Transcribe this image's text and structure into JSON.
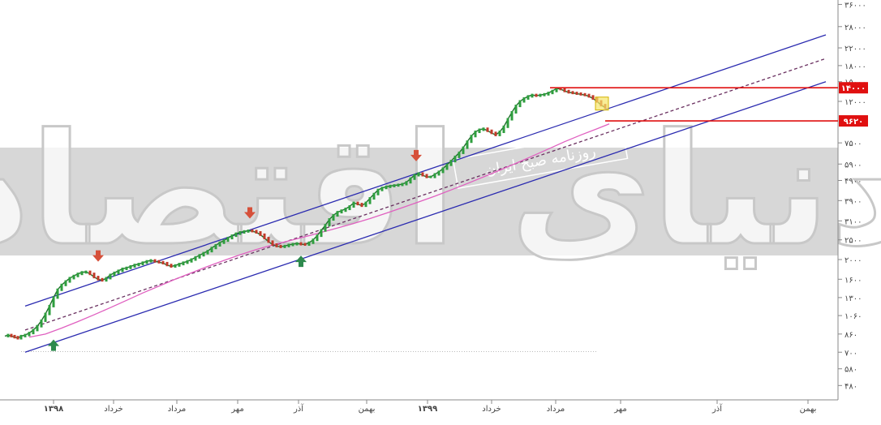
{
  "chart_data": {
    "type": "line",
    "scale": "log",
    "y_ticks": [
      {
        "label": "۴۸۰",
        "value": 480
      },
      {
        "label": "۵۸۰",
        "value": 580
      },
      {
        "label": "۷۰۰",
        "value": 700
      },
      {
        "label": "۸۶۰",
        "value": 860
      },
      {
        "label": "۱۰۶۰",
        "value": 1060
      },
      {
        "label": "۱۳۰۰",
        "value": 1300
      },
      {
        "label": "۱۶۰۰",
        "value": 1600
      },
      {
        "label": "۲۰۰۰",
        "value": 2000
      },
      {
        "label": "۲۵۰۰",
        "value": 2500
      },
      {
        "label": "۳۱۰۰",
        "value": 3100
      },
      {
        "label": "۳۹۰۰",
        "value": 3900
      },
      {
        "label": "۴۹۰۰",
        "value": 4900
      },
      {
        "label": "۵۹۰۰",
        "value": 5900
      },
      {
        "label": "۷۵۰۰",
        "value": 7500
      },
      {
        "label": "۱۲۰۰۰",
        "value": 12000
      },
      {
        "label": "۱۵۰۰۰",
        "value": 15000
      },
      {
        "label": "۱۸۰۰۰",
        "value": 18000
      },
      {
        "label": "۲۲۰۰۰",
        "value": 22000
      },
      {
        "label": "۲۸۰۰۰",
        "value": 28000
      },
      {
        "label": "۳۶۰۰۰",
        "value": 36000
      }
    ],
    "x_ticks": [
      {
        "label": "۱۳۹۸",
        "bold": true
      },
      {
        "label": "خرداد",
        "bold": false
      },
      {
        "label": "مرداد",
        "bold": false
      },
      {
        "label": "مهر",
        "bold": false
      },
      {
        "label": "آذر",
        "bold": false
      },
      {
        "label": "بهمن",
        "bold": false
      },
      {
        "label": "۱۳۹۹",
        "bold": true
      },
      {
        "label": "خرداد",
        "bold": false
      },
      {
        "label": "مرداد",
        "bold": false
      },
      {
        "label": "مهر",
        "bold": false
      },
      {
        "label": "آذر",
        "bold": false
      },
      {
        "label": "بهمن",
        "bold": false
      }
    ],
    "levels": [
      {
        "label": "۱۴۰۰۰",
        "value": 14000,
        "color": "#e01010"
      },
      {
        "label": "۹۶۲۰",
        "value": 9620,
        "color": "#e01010"
      }
    ],
    "price_series": [
      [
        0,
        840
      ],
      [
        4,
        850
      ],
      [
        8,
        840
      ],
      [
        12,
        830
      ],
      [
        16,
        820
      ],
      [
        20,
        840
      ],
      [
        25,
        850
      ],
      [
        30,
        870
      ],
      [
        35,
        900
      ],
      [
        40,
        940
      ],
      [
        45,
        1000
      ],
      [
        50,
        1080
      ],
      [
        55,
        1180
      ],
      [
        60,
        1300
      ],
      [
        65,
        1420
      ],
      [
        70,
        1500
      ],
      [
        75,
        1560
      ],
      [
        80,
        1620
      ],
      [
        85,
        1660
      ],
      [
        90,
        1700
      ],
      [
        95,
        1730
      ],
      [
        100,
        1740
      ],
      [
        105,
        1700
      ],
      [
        110,
        1640
      ],
      [
        115,
        1600
      ],
      [
        120,
        1580
      ],
      [
        125,
        1620
      ],
      [
        130,
        1680
      ],
      [
        135,
        1720
      ],
      [
        140,
        1760
      ],
      [
        145,
        1800
      ],
      [
        150,
        1820
      ],
      [
        155,
        1850
      ],
      [
        160,
        1880
      ],
      [
        165,
        1900
      ],
      [
        170,
        1930
      ],
      [
        175,
        1960
      ],
      [
        180,
        1980
      ],
      [
        185,
        1960
      ],
      [
        190,
        1940
      ],
      [
        195,
        1920
      ],
      [
        200,
        1880
      ],
      [
        205,
        1850
      ],
      [
        210,
        1870
      ],
      [
        215,
        1900
      ],
      [
        220,
        1930
      ],
      [
        225,
        1960
      ],
      [
        230,
        2000
      ],
      [
        235,
        2050
      ],
      [
        240,
        2100
      ],
      [
        245,
        2150
      ],
      [
        250,
        2200
      ],
      [
        255,
        2280
      ],
      [
        260,
        2350
      ],
      [
        265,
        2420
      ],
      [
        270,
        2480
      ],
      [
        275,
        2550
      ],
      [
        280,
        2620
      ],
      [
        285,
        2680
      ],
      [
        290,
        2720
      ],
      [
        295,
        2750
      ],
      [
        300,
        2770
      ],
      [
        305,
        2760
      ],
      [
        310,
        2720
      ],
      [
        315,
        2650
      ],
      [
        320,
        2550
      ],
      [
        325,
        2450
      ],
      [
        330,
        2370
      ],
      [
        335,
        2330
      ],
      [
        340,
        2310
      ],
      [
        345,
        2330
      ],
      [
        350,
        2360
      ],
      [
        355,
        2380
      ],
      [
        360,
        2400
      ],
      [
        365,
        2380
      ],
      [
        370,
        2370
      ],
      [
        375,
        2420
      ],
      [
        380,
        2500
      ],
      [
        385,
        2620
      ],
      [
        390,
        2780
      ],
      [
        395,
        2950
      ],
      [
        400,
        3150
      ],
      [
        405,
        3300
      ],
      [
        410,
        3420
      ],
      [
        415,
        3480
      ],
      [
        420,
        3550
      ],
      [
        425,
        3650
      ],
      [
        430,
        3800
      ],
      [
        435,
        3750
      ],
      [
        440,
        3680
      ],
      [
        445,
        3800
      ],
      [
        450,
        4000
      ],
      [
        455,
        4200
      ],
      [
        460,
        4400
      ],
      [
        465,
        4500
      ],
      [
        470,
        4560
      ],
      [
        475,
        4600
      ],
      [
        480,
        4630
      ],
      [
        485,
        4660
      ],
      [
        490,
        4700
      ],
      [
        495,
        4800
      ],
      [
        500,
        5000
      ],
      [
        505,
        5200
      ],
      [
        510,
        5300
      ],
      [
        515,
        5200
      ],
      [
        520,
        5100
      ],
      [
        525,
        5100
      ],
      [
        530,
        5250
      ],
      [
        535,
        5400
      ],
      [
        540,
        5600
      ],
      [
        545,
        5850
      ],
      [
        550,
        6100
      ],
      [
        555,
        6400
      ],
      [
        560,
        6700
      ],
      [
        565,
        7100
      ],
      [
        570,
        7600
      ],
      [
        575,
        8100
      ],
      [
        580,
        8500
      ],
      [
        585,
        8700
      ],
      [
        590,
        8800
      ],
      [
        595,
        8600
      ],
      [
        600,
        8400
      ],
      [
        605,
        8200
      ],
      [
        610,
        8500
      ],
      [
        615,
        9000
      ],
      [
        620,
        9800
      ],
      [
        625,
        10600
      ],
      [
        630,
        11400
      ],
      [
        635,
        12000
      ],
      [
        640,
        12400
      ],
      [
        645,
        12700
      ],
      [
        650,
        12900
      ],
      [
        655,
        12800
      ],
      [
        660,
        12900
      ],
      [
        665,
        13000
      ],
      [
        670,
        13200
      ],
      [
        675,
        13500
      ],
      [
        680,
        13900
      ],
      [
        685,
        13800
      ],
      [
        690,
        13500
      ],
      [
        695,
        13300
      ],
      [
        700,
        13200
      ],
      [
        705,
        13100
      ],
      [
        710,
        13000
      ],
      [
        715,
        12900
      ],
      [
        720,
        12700
      ],
      [
        725,
        12400
      ],
      [
        730,
        12000
      ],
      [
        735,
        11500
      ],
      [
        740,
        11200
      ]
    ],
    "ma_series": [
      [
        30,
        830
      ],
      [
        50,
        860
      ],
      [
        70,
        920
      ],
      [
        90,
        990
      ],
      [
        110,
        1070
      ],
      [
        130,
        1160
      ],
      [
        150,
        1260
      ],
      [
        170,
        1370
      ],
      [
        190,
        1480
      ],
      [
        210,
        1600
      ],
      [
        230,
        1720
      ],
      [
        250,
        1850
      ],
      [
        270,
        1980
      ],
      [
        290,
        2110
      ],
      [
        310,
        2240
      ],
      [
        330,
        2360
      ],
      [
        350,
        2470
      ],
      [
        370,
        2590
      ],
      [
        390,
        2720
      ],
      [
        410,
        2860
      ],
      [
        430,
        3010
      ],
      [
        450,
        3180
      ],
      [
        470,
        3380
      ],
      [
        490,
        3600
      ],
      [
        510,
        3840
      ],
      [
        530,
        4100
      ],
      [
        550,
        4400
      ],
      [
        570,
        4730
      ],
      [
        590,
        5100
      ],
      [
        610,
        5500
      ],
      [
        630,
        5950
      ],
      [
        650,
        6450
      ],
      [
        670,
        7000
      ],
      [
        690,
        7600
      ],
      [
        710,
        8200
      ],
      [
        730,
        8800
      ],
      [
        745,
        9300
      ]
    ],
    "buy_markers": [
      [
        60,
        870
      ],
      [
        365,
        2250
      ]
    ],
    "sell_markers": [
      [
        115,
        1780
      ],
      [
        302,
        2900
      ],
      [
        507,
        5550
      ]
    ],
    "channel": {
      "upper": [
        [
          25,
          1180
        ],
        [
          1012,
          25500
        ]
      ],
      "middle": [
        [
          25,
          900
        ],
        [
          1012,
          19500
        ]
      ],
      "lower": [
        [
          25,
          700
        ],
        [
          1012,
          15000
        ]
      ]
    }
  },
  "watermark": {
    "brand_text": "دنیای اقتصاد",
    "tagline": "روزنامه صبح ایران"
  }
}
